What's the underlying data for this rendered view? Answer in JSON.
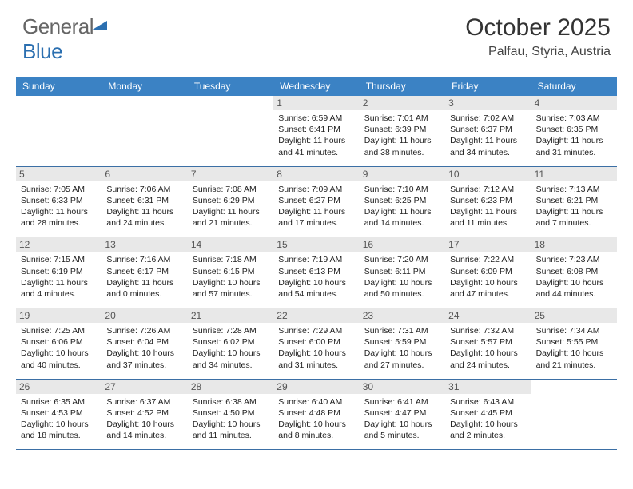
{
  "brand": {
    "part1": "General",
    "part2": "Blue"
  },
  "title": "October 2025",
  "location": "Palfau, Styria, Austria",
  "colors": {
    "header_bg": "#3b82c4",
    "border": "#3b6fa5",
    "daynum_bg": "#e8e8e8",
    "brand_blue": "#2b6fb0"
  },
  "day_names": [
    "Sunday",
    "Monday",
    "Tuesday",
    "Wednesday",
    "Thursday",
    "Friday",
    "Saturday"
  ],
  "weeks": [
    [
      null,
      null,
      null,
      {
        "n": "1",
        "sr": "6:59 AM",
        "ss": "6:41 PM",
        "dh": "11",
        "dm": "41"
      },
      {
        "n": "2",
        "sr": "7:01 AM",
        "ss": "6:39 PM",
        "dh": "11",
        "dm": "38"
      },
      {
        "n": "3",
        "sr": "7:02 AM",
        "ss": "6:37 PM",
        "dh": "11",
        "dm": "34"
      },
      {
        "n": "4",
        "sr": "7:03 AM",
        "ss": "6:35 PM",
        "dh": "11",
        "dm": "31"
      }
    ],
    [
      {
        "n": "5",
        "sr": "7:05 AM",
        "ss": "6:33 PM",
        "dh": "11",
        "dm": "28"
      },
      {
        "n": "6",
        "sr": "7:06 AM",
        "ss": "6:31 PM",
        "dh": "11",
        "dm": "24"
      },
      {
        "n": "7",
        "sr": "7:08 AM",
        "ss": "6:29 PM",
        "dh": "11",
        "dm": "21"
      },
      {
        "n": "8",
        "sr": "7:09 AM",
        "ss": "6:27 PM",
        "dh": "11",
        "dm": "17"
      },
      {
        "n": "9",
        "sr": "7:10 AM",
        "ss": "6:25 PM",
        "dh": "11",
        "dm": "14"
      },
      {
        "n": "10",
        "sr": "7:12 AM",
        "ss": "6:23 PM",
        "dh": "11",
        "dm": "11"
      },
      {
        "n": "11",
        "sr": "7:13 AM",
        "ss": "6:21 PM",
        "dh": "11",
        "dm": "7"
      }
    ],
    [
      {
        "n": "12",
        "sr": "7:15 AM",
        "ss": "6:19 PM",
        "dh": "11",
        "dm": "4"
      },
      {
        "n": "13",
        "sr": "7:16 AM",
        "ss": "6:17 PM",
        "dh": "11",
        "dm": "0"
      },
      {
        "n": "14",
        "sr": "7:18 AM",
        "ss": "6:15 PM",
        "dh": "10",
        "dm": "57"
      },
      {
        "n": "15",
        "sr": "7:19 AM",
        "ss": "6:13 PM",
        "dh": "10",
        "dm": "54"
      },
      {
        "n": "16",
        "sr": "7:20 AM",
        "ss": "6:11 PM",
        "dh": "10",
        "dm": "50"
      },
      {
        "n": "17",
        "sr": "7:22 AM",
        "ss": "6:09 PM",
        "dh": "10",
        "dm": "47"
      },
      {
        "n": "18",
        "sr": "7:23 AM",
        "ss": "6:08 PM",
        "dh": "10",
        "dm": "44"
      }
    ],
    [
      {
        "n": "19",
        "sr": "7:25 AM",
        "ss": "6:06 PM",
        "dh": "10",
        "dm": "40"
      },
      {
        "n": "20",
        "sr": "7:26 AM",
        "ss": "6:04 PM",
        "dh": "10",
        "dm": "37"
      },
      {
        "n": "21",
        "sr": "7:28 AM",
        "ss": "6:02 PM",
        "dh": "10",
        "dm": "34"
      },
      {
        "n": "22",
        "sr": "7:29 AM",
        "ss": "6:00 PM",
        "dh": "10",
        "dm": "31"
      },
      {
        "n": "23",
        "sr": "7:31 AM",
        "ss": "5:59 PM",
        "dh": "10",
        "dm": "27"
      },
      {
        "n": "24",
        "sr": "7:32 AM",
        "ss": "5:57 PM",
        "dh": "10",
        "dm": "24"
      },
      {
        "n": "25",
        "sr": "7:34 AM",
        "ss": "5:55 PM",
        "dh": "10",
        "dm": "21"
      }
    ],
    [
      {
        "n": "26",
        "sr": "6:35 AM",
        "ss": "4:53 PM",
        "dh": "10",
        "dm": "18"
      },
      {
        "n": "27",
        "sr": "6:37 AM",
        "ss": "4:52 PM",
        "dh": "10",
        "dm": "14"
      },
      {
        "n": "28",
        "sr": "6:38 AM",
        "ss": "4:50 PM",
        "dh": "10",
        "dm": "11"
      },
      {
        "n": "29",
        "sr": "6:40 AM",
        "ss": "4:48 PM",
        "dh": "10",
        "dm": "8"
      },
      {
        "n": "30",
        "sr": "6:41 AM",
        "ss": "4:47 PM",
        "dh": "10",
        "dm": "5"
      },
      {
        "n": "31",
        "sr": "6:43 AM",
        "ss": "4:45 PM",
        "dh": "10",
        "dm": "2"
      },
      null
    ]
  ],
  "labels": {
    "sunrise": "Sunrise:",
    "sunset": "Sunset:",
    "daylight": "Daylight:",
    "hours": "hours",
    "and": "and",
    "minutes": "minutes."
  }
}
